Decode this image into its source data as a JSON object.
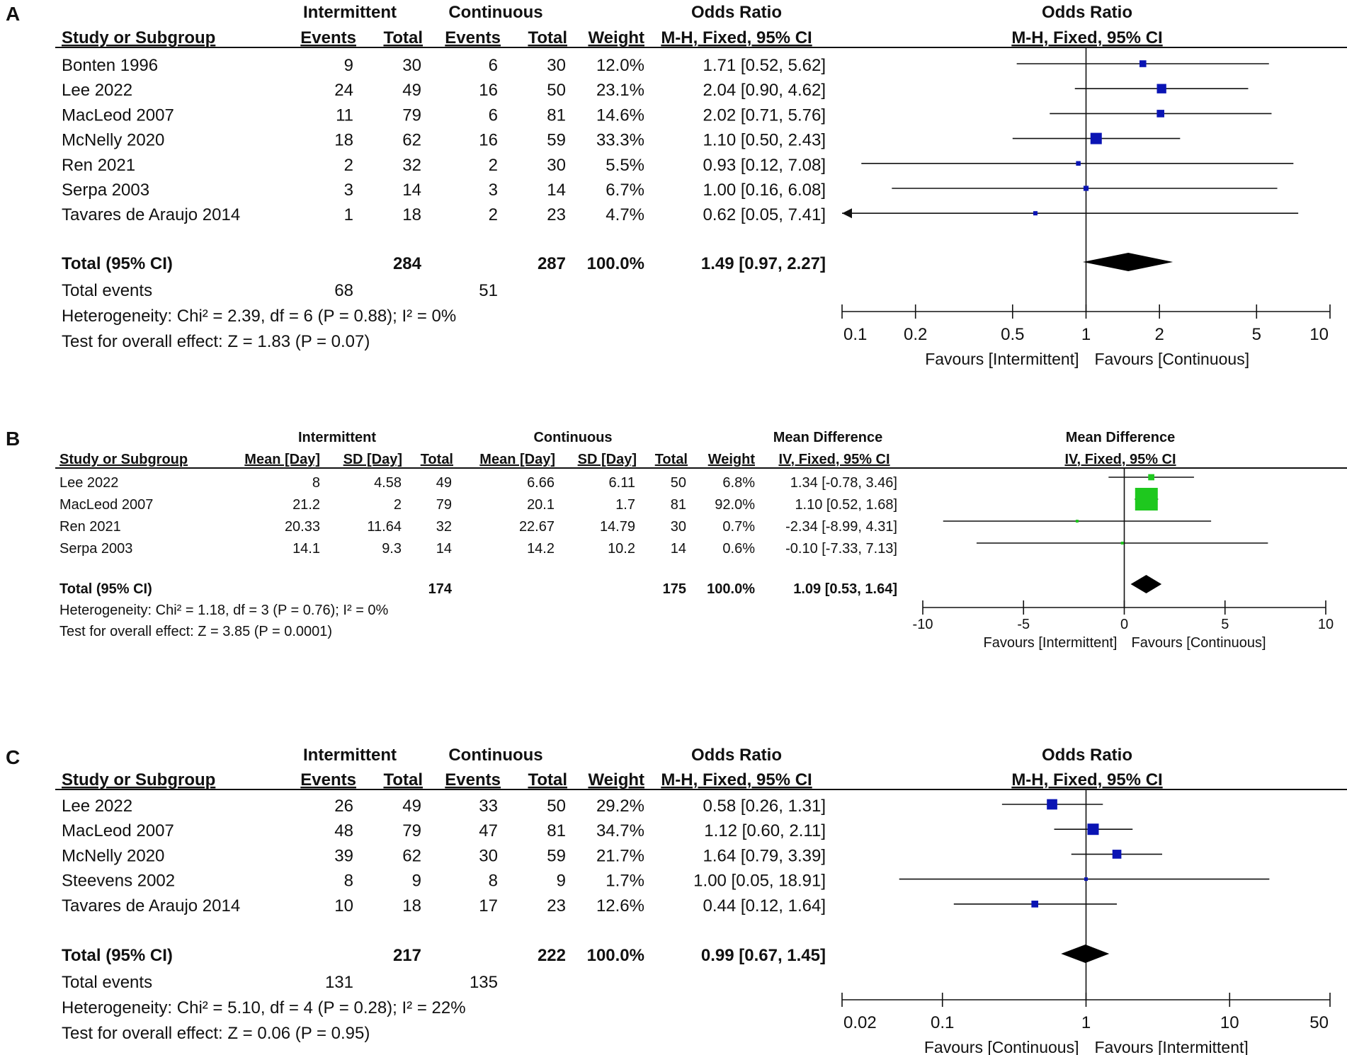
{
  "chart_data": [
    {
      "type": "forest",
      "panel_label": "A",
      "measure": "Odds Ratio",
      "method": "M-H, Fixed, 95% CI",
      "group1": "Intermittent",
      "group2": "Continuous",
      "column_headers": {
        "study": "Study or Subgroup",
        "events": "Events",
        "total": "Total",
        "weight": "Weight",
        "effect": "M-H, Fixed, 95% CI"
      },
      "studies": [
        {
          "name": "Bonten 1996",
          "g1_events": "9",
          "g1_total": "30",
          "g2_events": "6",
          "g2_total": "30",
          "weight": "12.0%",
          "weight_value": 12.0,
          "ci_text": "1.71 [0.52, 5.62]",
          "est": 1.71,
          "lo": 0.52,
          "hi": 5.62
        },
        {
          "name": "Lee 2022",
          "g1_events": "24",
          "g1_total": "49",
          "g2_events": "16",
          "g2_total": "50",
          "weight": "23.1%",
          "weight_value": 23.1,
          "ci_text": "2.04 [0.90, 4.62]",
          "est": 2.04,
          "lo": 0.9,
          "hi": 4.62
        },
        {
          "name": "MacLeod 2007",
          "g1_events": "11",
          "g1_total": "79",
          "g2_events": "6",
          "g2_total": "81",
          "weight": "14.6%",
          "weight_value": 14.6,
          "ci_text": "2.02 [0.71, 5.76]",
          "est": 2.02,
          "lo": 0.71,
          "hi": 5.76
        },
        {
          "name": "McNelly 2020",
          "g1_events": "18",
          "g1_total": "62",
          "g2_events": "16",
          "g2_total": "59",
          "weight": "33.3%",
          "weight_value": 33.3,
          "ci_text": "1.10 [0.50, 2.43]",
          "est": 1.1,
          "lo": 0.5,
          "hi": 2.43
        },
        {
          "name": "Ren 2021",
          "g1_events": "2",
          "g1_total": "32",
          "g2_events": "2",
          "g2_total": "30",
          "weight": "5.5%",
          "weight_value": 5.5,
          "ci_text": "0.93 [0.12, 7.08]",
          "est": 0.93,
          "lo": 0.12,
          "hi": 7.08
        },
        {
          "name": "Serpa 2003",
          "g1_events": "3",
          "g1_total": "14",
          "g2_events": "3",
          "g2_total": "14",
          "weight": "6.7%",
          "weight_value": 6.7,
          "ci_text": "1.00 [0.16, 6.08]",
          "est": 1.0,
          "lo": 0.16,
          "hi": 6.08
        },
        {
          "name": "Tavares de Araujo 2014",
          "g1_events": "1",
          "g1_total": "18",
          "g2_events": "2",
          "g2_total": "23",
          "weight": "4.7%",
          "weight_value": 4.7,
          "ci_text": "0.62 [0.05, 7.41]",
          "est": 0.62,
          "lo": 0.05,
          "hi": 7.41
        }
      ],
      "total": {
        "label": "Total (95% CI)",
        "g1_total": "284",
        "g2_total": "287",
        "weight": "100.0%",
        "ci_text": "1.49 [0.97, 2.27]",
        "est": 1.49,
        "lo": 0.97,
        "hi": 2.27
      },
      "total_events": {
        "label": "Total events",
        "g1": "68",
        "g2": "51"
      },
      "heterogeneity": "Heterogeneity: Chi² = 2.39, df = 6 (P = 0.88); I² = 0%",
      "overall_effect": "Test for overall effect: Z = 1.83 (P = 0.07)",
      "axis": {
        "scale": "log",
        "xlim": [
          0.1,
          10
        ],
        "ticks": [
          0.1,
          0.2,
          0.5,
          1,
          2,
          5,
          10
        ],
        "tick_labels": [
          "0.1",
          "0.2",
          "0.5",
          "1",
          "2",
          "5",
          "10"
        ],
        "null_value": 1
      },
      "favours_left": "Favours [Intermittent]",
      "favours_right": "Favours [Continuous]",
      "marker_color": "#0a14b4"
    },
    {
      "type": "forest",
      "panel_label": "B",
      "measure": "Mean Difference",
      "method": "IV, Fixed, 95% CI",
      "group1": "Intermittent",
      "group2": "Continuous",
      "column_headers": {
        "study": "Study or Subgroup",
        "mean": "Mean [Day]",
        "sd": "SD [Day]",
        "total": "Total",
        "weight": "Weight",
        "effect": "IV, Fixed, 95% CI"
      },
      "studies": [
        {
          "name": "Lee 2022",
          "g1_mean": "8",
          "g1_sd": "4.58",
          "g1_total": "49",
          "g2_mean": "6.66",
          "g2_sd": "6.11",
          "g2_total": "50",
          "weight": "6.8%",
          "weight_value": 6.8,
          "ci_text": "1.34 [-0.78, 3.46]",
          "est": 1.34,
          "lo": -0.78,
          "hi": 3.46
        },
        {
          "name": "MacLeod 2007",
          "g1_mean": "21.2",
          "g1_sd": "2",
          "g1_total": "79",
          "g2_mean": "20.1",
          "g2_sd": "1.7",
          "g2_total": "81",
          "weight": "92.0%",
          "weight_value": 92.0,
          "ci_text": "1.10 [0.52, 1.68]",
          "est": 1.1,
          "lo": 0.52,
          "hi": 1.68
        },
        {
          "name": "Ren 2021",
          "g1_mean": "20.33",
          "g1_sd": "11.64",
          "g1_total": "32",
          "g2_mean": "22.67",
          "g2_sd": "14.79",
          "g2_total": "30",
          "weight": "0.7%",
          "weight_value": 0.7,
          "ci_text": "-2.34 [-8.99, 4.31]",
          "est": -2.34,
          "lo": -8.99,
          "hi": 4.31
        },
        {
          "name": "Serpa 2003",
          "g1_mean": "14.1",
          "g1_sd": "9.3",
          "g1_total": "14",
          "g2_mean": "14.2",
          "g2_sd": "10.2",
          "g2_total": "14",
          "weight": "0.6%",
          "weight_value": 0.6,
          "ci_text": "-0.10 [-7.33, 7.13]",
          "est": -0.1,
          "lo": -7.33,
          "hi": 7.13
        }
      ],
      "total": {
        "label": "Total (95% CI)",
        "g1_total": "174",
        "g2_total": "175",
        "weight": "100.0%",
        "ci_text": "1.09 [0.53, 1.64]",
        "est": 1.09,
        "lo": 0.53,
        "hi": 1.64
      },
      "heterogeneity": "Heterogeneity: Chi² = 1.18, df = 3 (P = 0.76); I² = 0%",
      "overall_effect": "Test for overall effect: Z = 3.85 (P = 0.0001)",
      "axis": {
        "scale": "linear",
        "xlim": [
          -10,
          10
        ],
        "ticks": [
          -10,
          -5,
          0,
          5,
          10
        ],
        "tick_labels": [
          "-10",
          "-5",
          "0",
          "5",
          "10"
        ],
        "null_value": 0
      },
      "favours_left": "Favours [Intermittent]",
      "favours_right": "Favours [Continuous]",
      "marker_color": "#1ec81e"
    },
    {
      "type": "forest",
      "panel_label": "C",
      "measure": "Odds Ratio",
      "method": "M-H, Fixed, 95% CI",
      "group1": "Intermittent",
      "group2": "Continuous",
      "column_headers": {
        "study": "Study or Subgroup",
        "events": "Events",
        "total": "Total",
        "weight": "Weight",
        "effect": "M-H, Fixed, 95% CI"
      },
      "studies": [
        {
          "name": "Lee 2022",
          "g1_events": "26",
          "g1_total": "49",
          "g2_events": "33",
          "g2_total": "50",
          "weight": "29.2%",
          "weight_value": 29.2,
          "ci_text": "0.58 [0.26, 1.31]",
          "est": 0.58,
          "lo": 0.26,
          "hi": 1.31
        },
        {
          "name": "MacLeod 2007",
          "g1_events": "48",
          "g1_total": "79",
          "g2_events": "47",
          "g2_total": "81",
          "weight": "34.7%",
          "weight_value": 34.7,
          "ci_text": "1.12 [0.60, 2.11]",
          "est": 1.12,
          "lo": 0.6,
          "hi": 2.11
        },
        {
          "name": "McNelly 2020",
          "g1_events": "39",
          "g1_total": "62",
          "g2_events": "30",
          "g2_total": "59",
          "weight": "21.7%",
          "weight_value": 21.7,
          "ci_text": "1.64 [0.79, 3.39]",
          "est": 1.64,
          "lo": 0.79,
          "hi": 3.39
        },
        {
          "name": "Steevens 2002",
          "g1_events": "8",
          "g1_total": "9",
          "g2_events": "8",
          "g2_total": "9",
          "weight": "1.7%",
          "weight_value": 1.7,
          "ci_text": "1.00 [0.05, 18.91]",
          "est": 1.0,
          "lo": 0.05,
          "hi": 18.91
        },
        {
          "name": "Tavares de Araujo 2014",
          "g1_events": "10",
          "g1_total": "18",
          "g2_events": "17",
          "g2_total": "23",
          "weight": "12.6%",
          "weight_value": 12.6,
          "ci_text": "0.44 [0.12, 1.64]",
          "est": 0.44,
          "lo": 0.12,
          "hi": 1.64
        }
      ],
      "total": {
        "label": "Total (95% CI)",
        "g1_total": "217",
        "g2_total": "222",
        "weight": "100.0%",
        "ci_text": "0.99 [0.67, 1.45]",
        "est": 0.99,
        "lo": 0.67,
        "hi": 1.45
      },
      "total_events": {
        "label": "Total events",
        "g1": "131",
        "g2": "135"
      },
      "heterogeneity": "Heterogeneity: Chi² = 5.10, df = 4 (P = 0.28); I² = 22%",
      "overall_effect": "Test for overall effect: Z = 0.06 (P = 0.95)",
      "axis": {
        "scale": "log",
        "xlim": [
          0.02,
          50
        ],
        "ticks": [
          0.02,
          0.1,
          1,
          10,
          50
        ],
        "tick_labels": [
          "0.02",
          "0.1",
          "1",
          "10",
          "50"
        ],
        "null_value": 1
      },
      "favours_left": "Favours [Continuous]",
      "favours_right": "Favours [Intermittent]",
      "marker_color": "#0a14b4"
    }
  ]
}
